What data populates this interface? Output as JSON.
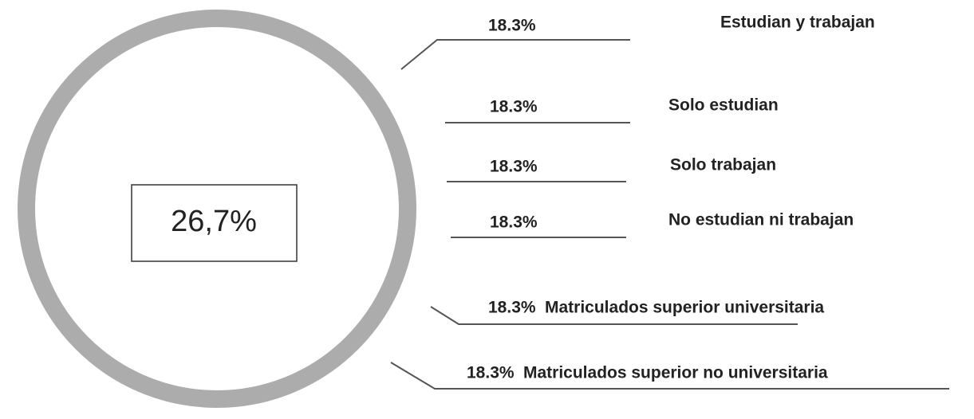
{
  "center_label": "26,7%",
  "callouts": [
    {
      "value": "18.3%",
      "label": "Estudian y trabajan"
    },
    {
      "value": "18.3%",
      "label": "Solo estudian"
    },
    {
      "value": "18.3%",
      "label": "Solo trabajan"
    },
    {
      "value": "18.3%",
      "label": "No estudian ni trabajan"
    },
    {
      "value": "18.3%",
      "label": "Matriculados superior universitaria"
    },
    {
      "value": "18.3%",
      "label": "Matriculados superior no universitaria"
    }
  ]
}
